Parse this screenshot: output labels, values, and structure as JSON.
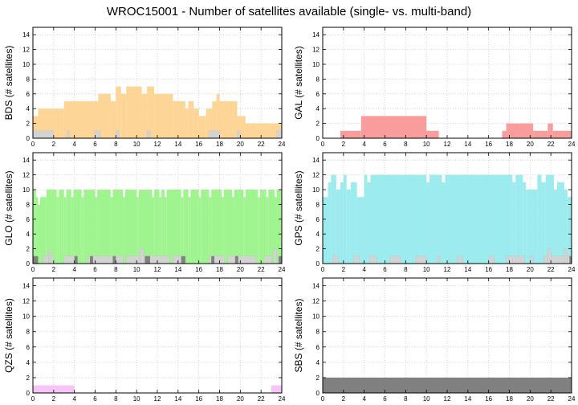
{
  "title": "WROC15001 - Number of satellites available (single- vs. multi-band)",
  "colors": {
    "single_band": "#d3d3d3",
    "multi_band_dark": "#808080",
    "BDS": "#fdd596",
    "GAL": "#f99c9c",
    "GLO": "#a0f490",
    "GPS": "#9cebee",
    "QZS": "#f6c4f6",
    "SBS": "#808080"
  },
  "chart_data": [
    {
      "type": "bar",
      "panel": "BDS",
      "ylabel": "BDS (# satellites)",
      "xlim": [
        0,
        24
      ],
      "ylim": [
        0,
        15
      ],
      "xticks": [
        0,
        2,
        4,
        6,
        8,
        10,
        12,
        14,
        16,
        18,
        20,
        22,
        24
      ],
      "yticks": [
        0,
        2,
        4,
        6,
        8,
        10,
        12,
        14
      ],
      "grid": true,
      "total": [
        {
          "x0": 0.0,
          "x1": 0.5,
          "v": 3
        },
        {
          "x0": 0.5,
          "x1": 3.0,
          "v": 4
        },
        {
          "x0": 3.0,
          "x1": 6.3,
          "v": 5
        },
        {
          "x0": 6.3,
          "x1": 7.5,
          "v": 6
        },
        {
          "x0": 7.5,
          "x1": 8.0,
          "v": 5
        },
        {
          "x0": 8.0,
          "x1": 8.5,
          "v": 7
        },
        {
          "x0": 8.5,
          "x1": 9.0,
          "v": 6
        },
        {
          "x0": 9.0,
          "x1": 10.5,
          "v": 7
        },
        {
          "x0": 10.5,
          "x1": 11.0,
          "v": 6
        },
        {
          "x0": 11.0,
          "x1": 11.7,
          "v": 7
        },
        {
          "x0": 11.7,
          "x1": 13.5,
          "v": 6
        },
        {
          "x0": 13.5,
          "x1": 14.7,
          "v": 5
        },
        {
          "x0": 14.7,
          "x1": 15.0,
          "v": 4
        },
        {
          "x0": 15.0,
          "x1": 15.5,
          "v": 5
        },
        {
          "x0": 15.5,
          "x1": 16.0,
          "v": 4
        },
        {
          "x0": 16.0,
          "x1": 16.7,
          "v": 3
        },
        {
          "x0": 16.7,
          "x1": 17.3,
          "v": 4
        },
        {
          "x0": 17.3,
          "x1": 17.7,
          "v": 5
        },
        {
          "x0": 17.7,
          "x1": 18.0,
          "v": 6
        },
        {
          "x0": 18.0,
          "x1": 19.7,
          "v": 5
        },
        {
          "x0": 19.7,
          "x1": 20.5,
          "v": 3
        },
        {
          "x0": 20.5,
          "x1": 22.0,
          "v": 2
        },
        {
          "x0": 22.0,
          "x1": 24.0,
          "v": 2
        }
      ],
      "single": [
        {
          "x0": 0.0,
          "x1": 2.0,
          "v": 1
        },
        {
          "x0": 3.3,
          "x1": 3.5,
          "v": 1
        },
        {
          "x0": 6.0,
          "x1": 6.5,
          "v": 1
        },
        {
          "x0": 8.0,
          "x1": 8.3,
          "v": 1
        },
        {
          "x0": 11.0,
          "x1": 11.3,
          "v": 1
        },
        {
          "x0": 17.0,
          "x1": 18.0,
          "v": 1
        },
        {
          "x0": 19.7,
          "x1": 20.0,
          "v": 1
        },
        {
          "x0": 23.5,
          "x1": 24.0,
          "v": 1
        }
      ],
      "multi_dark": []
    },
    {
      "type": "bar",
      "panel": "GAL",
      "ylabel": "GAL (# satellites)",
      "xlim": [
        0,
        24
      ],
      "ylim": [
        0,
        15
      ],
      "xticks": [
        0,
        2,
        4,
        6,
        8,
        10,
        12,
        14,
        16,
        18,
        20,
        22,
        24
      ],
      "yticks": [
        0,
        2,
        4,
        6,
        8,
        10,
        12,
        14
      ],
      "grid": true,
      "total": [
        {
          "x0": 1.7,
          "x1": 3.7,
          "v": 1
        },
        {
          "x0": 3.7,
          "x1": 10.0,
          "v": 3
        },
        {
          "x0": 10.0,
          "x1": 11.2,
          "v": 1
        },
        {
          "x0": 17.3,
          "x1": 17.7,
          "v": 1
        },
        {
          "x0": 17.7,
          "x1": 20.3,
          "v": 2
        },
        {
          "x0": 20.3,
          "x1": 21.7,
          "v": 1
        },
        {
          "x0": 21.7,
          "x1": 22.2,
          "v": 2
        },
        {
          "x0": 22.2,
          "x1": 24.0,
          "v": 1
        }
      ],
      "single": [],
      "multi_dark": []
    },
    {
      "type": "bar",
      "panel": "GLO",
      "ylabel": "GLO (# satellites)",
      "xlim": [
        0,
        24
      ],
      "ylim": [
        0,
        15
      ],
      "xticks": [
        0,
        2,
        4,
        6,
        8,
        10,
        12,
        14,
        16,
        18,
        20,
        22,
        24
      ],
      "yticks": [
        0,
        2,
        4,
        6,
        8,
        10,
        12,
        14
      ],
      "grid": true,
      "total": [
        {
          "x0": 0.0,
          "x1": 0.3,
          "v": 10
        },
        {
          "x0": 0.3,
          "x1": 0.5,
          "v": 9
        },
        {
          "x0": 0.5,
          "x1": 0.7,
          "v": 8
        },
        {
          "x0": 0.7,
          "x1": 1.3,
          "v": 9
        },
        {
          "x0": 1.3,
          "x1": 2.3,
          "v": 10
        },
        {
          "x0": 2.3,
          "x1": 2.5,
          "v": 9
        },
        {
          "x0": 2.5,
          "x1": 3.0,
          "v": 10
        },
        {
          "x0": 3.0,
          "x1": 3.2,
          "v": 9
        },
        {
          "x0": 3.2,
          "x1": 3.7,
          "v": 10
        },
        {
          "x0": 3.7,
          "x1": 3.9,
          "v": 9
        },
        {
          "x0": 3.9,
          "x1": 4.7,
          "v": 10
        },
        {
          "x0": 4.7,
          "x1": 4.9,
          "v": 9
        },
        {
          "x0": 4.9,
          "x1": 6.0,
          "v": 10
        },
        {
          "x0": 6.0,
          "x1": 6.2,
          "v": 9
        },
        {
          "x0": 6.2,
          "x1": 7.5,
          "v": 10
        },
        {
          "x0": 7.5,
          "x1": 7.7,
          "v": 9
        },
        {
          "x0": 7.7,
          "x1": 8.7,
          "v": 10
        },
        {
          "x0": 8.7,
          "x1": 8.9,
          "v": 9
        },
        {
          "x0": 8.9,
          "x1": 10.0,
          "v": 10
        },
        {
          "x0": 10.0,
          "x1": 10.2,
          "v": 9
        },
        {
          "x0": 10.2,
          "x1": 11.5,
          "v": 10
        },
        {
          "x0": 11.5,
          "x1": 11.7,
          "v": 9
        },
        {
          "x0": 11.7,
          "x1": 12.2,
          "v": 10
        },
        {
          "x0": 12.2,
          "x1": 12.4,
          "v": 9
        },
        {
          "x0": 12.4,
          "x1": 12.7,
          "v": 10
        },
        {
          "x0": 12.7,
          "x1": 12.9,
          "v": 9
        },
        {
          "x0": 12.9,
          "x1": 14.3,
          "v": 10
        },
        {
          "x0": 14.3,
          "x1": 14.5,
          "v": 9
        },
        {
          "x0": 14.5,
          "x1": 15.0,
          "v": 10
        },
        {
          "x0": 15.0,
          "x1": 15.2,
          "v": 9
        },
        {
          "x0": 15.2,
          "x1": 16.0,
          "v": 10
        },
        {
          "x0": 16.0,
          "x1": 16.2,
          "v": 9
        },
        {
          "x0": 16.2,
          "x1": 17.0,
          "v": 10
        },
        {
          "x0": 17.0,
          "x1": 17.2,
          "v": 9
        },
        {
          "x0": 17.2,
          "x1": 18.2,
          "v": 10
        },
        {
          "x0": 18.2,
          "x1": 18.4,
          "v": 9
        },
        {
          "x0": 18.4,
          "x1": 19.2,
          "v": 10
        },
        {
          "x0": 19.2,
          "x1": 19.4,
          "v": 9
        },
        {
          "x0": 19.4,
          "x1": 20.3,
          "v": 10
        },
        {
          "x0": 20.3,
          "x1": 20.5,
          "v": 9
        },
        {
          "x0": 20.5,
          "x1": 21.7,
          "v": 10
        },
        {
          "x0": 21.7,
          "x1": 21.9,
          "v": 9
        },
        {
          "x0": 21.9,
          "x1": 22.5,
          "v": 10
        },
        {
          "x0": 22.5,
          "x1": 22.7,
          "v": 9
        },
        {
          "x0": 22.7,
          "x1": 23.3,
          "v": 10
        },
        {
          "x0": 23.3,
          "x1": 23.5,
          "v": 9
        },
        {
          "x0": 23.5,
          "x1": 24.0,
          "v": 10
        }
      ],
      "single": [
        {
          "x0": 1.0,
          "x1": 1.5,
          "v": 1
        },
        {
          "x0": 1.5,
          "x1": 1.7,
          "v": 2
        },
        {
          "x0": 1.7,
          "x1": 2.0,
          "v": 1
        },
        {
          "x0": 3.0,
          "x1": 4.3,
          "v": 1
        },
        {
          "x0": 5.3,
          "x1": 8.7,
          "v": 1
        },
        {
          "x0": 9.0,
          "x1": 10.3,
          "v": 1
        },
        {
          "x0": 10.3,
          "x1": 10.7,
          "v": 2
        },
        {
          "x0": 10.7,
          "x1": 13.2,
          "v": 1
        },
        {
          "x0": 13.5,
          "x1": 14.7,
          "v": 1
        },
        {
          "x0": 17.0,
          "x1": 18.5,
          "v": 1
        },
        {
          "x0": 18.8,
          "x1": 21.5,
          "v": 1
        },
        {
          "x0": 22.3,
          "x1": 23.0,
          "v": 1
        },
        {
          "x0": 23.2,
          "x1": 23.5,
          "v": 2
        }
      ],
      "multi_dark": [
        {
          "x0": 0.0,
          "x1": 0.5,
          "v": 1
        },
        {
          "x0": 4.0,
          "x1": 4.3,
          "v": 1
        },
        {
          "x0": 5.5,
          "x1": 5.8,
          "v": 1
        },
        {
          "x0": 7.7,
          "x1": 8.0,
          "v": 1
        },
        {
          "x0": 10.8,
          "x1": 11.3,
          "v": 1
        },
        {
          "x0": 14.3,
          "x1": 14.7,
          "v": 1
        },
        {
          "x0": 17.2,
          "x1": 17.5,
          "v": 1
        },
        {
          "x0": 19.5,
          "x1": 19.8,
          "v": 1
        },
        {
          "x0": 23.7,
          "x1": 24.0,
          "v": 1
        }
      ]
    },
    {
      "type": "bar",
      "panel": "GPS",
      "ylabel": "GPS (# satellites)",
      "xlim": [
        0,
        24
      ],
      "ylim": [
        0,
        15
      ],
      "xticks": [
        0,
        2,
        4,
        6,
        8,
        10,
        12,
        14,
        16,
        18,
        20,
        22,
        24
      ],
      "yticks": [
        0,
        2,
        4,
        6,
        8,
        10,
        12,
        14
      ],
      "grid": true,
      "total": [
        {
          "x0": 0.0,
          "x1": 0.5,
          "v": 9
        },
        {
          "x0": 0.5,
          "x1": 0.8,
          "v": 11
        },
        {
          "x0": 0.8,
          "x1": 1.3,
          "v": 12
        },
        {
          "x0": 1.3,
          "x1": 1.7,
          "v": 10
        },
        {
          "x0": 1.7,
          "x1": 2.0,
          "v": 11
        },
        {
          "x0": 2.0,
          "x1": 2.3,
          "v": 12
        },
        {
          "x0": 2.3,
          "x1": 2.7,
          "v": 10
        },
        {
          "x0": 2.7,
          "x1": 3.3,
          "v": 11
        },
        {
          "x0": 3.3,
          "x1": 4.0,
          "v": 9
        },
        {
          "x0": 4.0,
          "x1": 4.3,
          "v": 12
        },
        {
          "x0": 4.3,
          "x1": 4.6,
          "v": 11
        },
        {
          "x0": 4.6,
          "x1": 10.0,
          "v": 12
        },
        {
          "x0": 10.0,
          "x1": 10.3,
          "v": 11
        },
        {
          "x0": 10.3,
          "x1": 11.5,
          "v": 12
        },
        {
          "x0": 11.5,
          "x1": 11.8,
          "v": 11
        },
        {
          "x0": 11.8,
          "x1": 18.3,
          "v": 12
        },
        {
          "x0": 18.3,
          "x1": 18.6,
          "v": 11
        },
        {
          "x0": 18.6,
          "x1": 19.3,
          "v": 12
        },
        {
          "x0": 19.3,
          "x1": 19.6,
          "v": 11
        },
        {
          "x0": 19.6,
          "x1": 20.7,
          "v": 10
        },
        {
          "x0": 20.7,
          "x1": 21.1,
          "v": 12
        },
        {
          "x0": 21.1,
          "x1": 21.5,
          "v": 11
        },
        {
          "x0": 21.5,
          "x1": 22.3,
          "v": 12
        },
        {
          "x0": 22.3,
          "x1": 22.6,
          "v": 10
        },
        {
          "x0": 22.6,
          "x1": 23.3,
          "v": 11
        },
        {
          "x0": 23.3,
          "x1": 23.6,
          "v": 10
        },
        {
          "x0": 23.6,
          "x1": 24.0,
          "v": 9
        }
      ],
      "single": [
        {
          "x0": 1.0,
          "x1": 1.5,
          "v": 1
        },
        {
          "x0": 3.0,
          "x1": 3.5,
          "v": 1
        },
        {
          "x0": 4.5,
          "x1": 5.2,
          "v": 1
        },
        {
          "x0": 6.5,
          "x1": 7.5,
          "v": 1
        },
        {
          "x0": 9.0,
          "x1": 10.0,
          "v": 1
        },
        {
          "x0": 11.0,
          "x1": 11.3,
          "v": 1
        },
        {
          "x0": 13.0,
          "x1": 13.5,
          "v": 1
        },
        {
          "x0": 16.0,
          "x1": 16.5,
          "v": 1
        },
        {
          "x0": 17.7,
          "x1": 19.5,
          "v": 1
        },
        {
          "x0": 20.0,
          "x1": 20.3,
          "v": 1
        },
        {
          "x0": 21.3,
          "x1": 21.7,
          "v": 1
        },
        {
          "x0": 21.7,
          "x1": 22.0,
          "v": 2
        },
        {
          "x0": 22.0,
          "x1": 23.3,
          "v": 1
        },
        {
          "x0": 23.3,
          "x1": 23.6,
          "v": 2
        },
        {
          "x0": 23.6,
          "x1": 24.0,
          "v": 1
        }
      ],
      "multi_dark": [
        {
          "x0": 23.8,
          "x1": 24.0,
          "v": 1
        }
      ]
    },
    {
      "type": "bar",
      "panel": "QZS",
      "ylabel": "QZS (# satellites)",
      "xlim": [
        0,
        24
      ],
      "ylim": [
        0,
        15
      ],
      "xticks": [
        0,
        2,
        4,
        6,
        8,
        10,
        12,
        14,
        16,
        18,
        20,
        22,
        24
      ],
      "yticks": [
        0,
        2,
        4,
        6,
        8,
        10,
        12,
        14
      ],
      "grid": true,
      "total": [
        {
          "x0": 0.0,
          "x1": 4.0,
          "v": 1
        },
        {
          "x0": 23.0,
          "x1": 24.0,
          "v": 1
        }
      ],
      "single": [],
      "multi_dark": []
    },
    {
      "type": "bar",
      "panel": "SBS",
      "ylabel": "SBS (# satellites)",
      "xlim": [
        0,
        24
      ],
      "ylim": [
        0,
        15
      ],
      "xticks": [
        0,
        2,
        4,
        6,
        8,
        10,
        12,
        14,
        16,
        18,
        20,
        22,
        24
      ],
      "yticks": [
        0,
        2,
        4,
        6,
        8,
        10,
        12,
        14
      ],
      "grid": true,
      "total": [
        {
          "x0": 0.0,
          "x1": 24.0,
          "v": 2
        }
      ],
      "single": [],
      "multi_dark": []
    }
  ]
}
